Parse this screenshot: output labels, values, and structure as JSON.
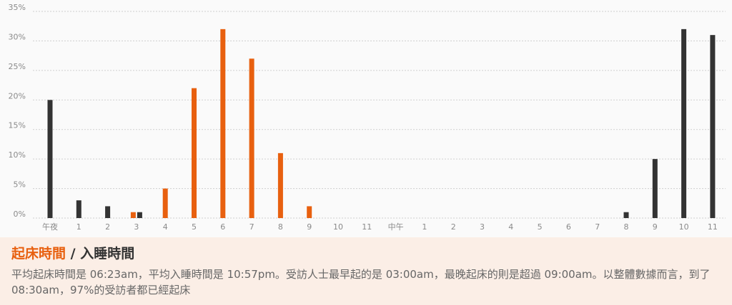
{
  "title": {
    "wake_label": "起床時間",
    "separator": " / ",
    "sleep_label": "入睡時間"
  },
  "description": "平均起床時間是 06:23am，平均入睡時間是 10:57pm。受訪人士最早起的是 03:00am，最晚起床的則是超過 09:00am。以整體數據而言，到了 08:30am，97%的受訪者都已經起床",
  "colors": {
    "wake": "#e8600f",
    "sleep": "#333333"
  },
  "chart_data": {
    "type": "bar",
    "categories": [
      "午夜",
      "1",
      "2",
      "3",
      "4",
      "5",
      "6",
      "7",
      "8",
      "9",
      "10",
      "11",
      "中午",
      "1",
      "2",
      "3",
      "4",
      "5",
      "6",
      "7",
      "8",
      "9",
      "10",
      "11"
    ],
    "series": [
      {
        "name": "起床時間",
        "color": "#e8600f",
        "values": [
          0,
          0,
          0,
          1,
          5,
          22,
          32,
          27,
          11,
          2,
          0,
          0,
          0,
          0,
          0,
          0,
          0,
          0,
          0,
          0,
          0,
          0,
          0,
          0
        ]
      },
      {
        "name": "入睡時間",
        "color": "#333333",
        "values": [
          20,
          3,
          2,
          1,
          0,
          0,
          0,
          0,
          0,
          0,
          0,
          0,
          0,
          0,
          0,
          0,
          0,
          0,
          0,
          0,
          1,
          10,
          32,
          31
        ]
      }
    ],
    "yticks": [
      "0%",
      "5%",
      "10%",
      "15%",
      "20%",
      "25%",
      "30%",
      "35%"
    ],
    "ylim": [
      0,
      35
    ],
    "grid": true
  }
}
